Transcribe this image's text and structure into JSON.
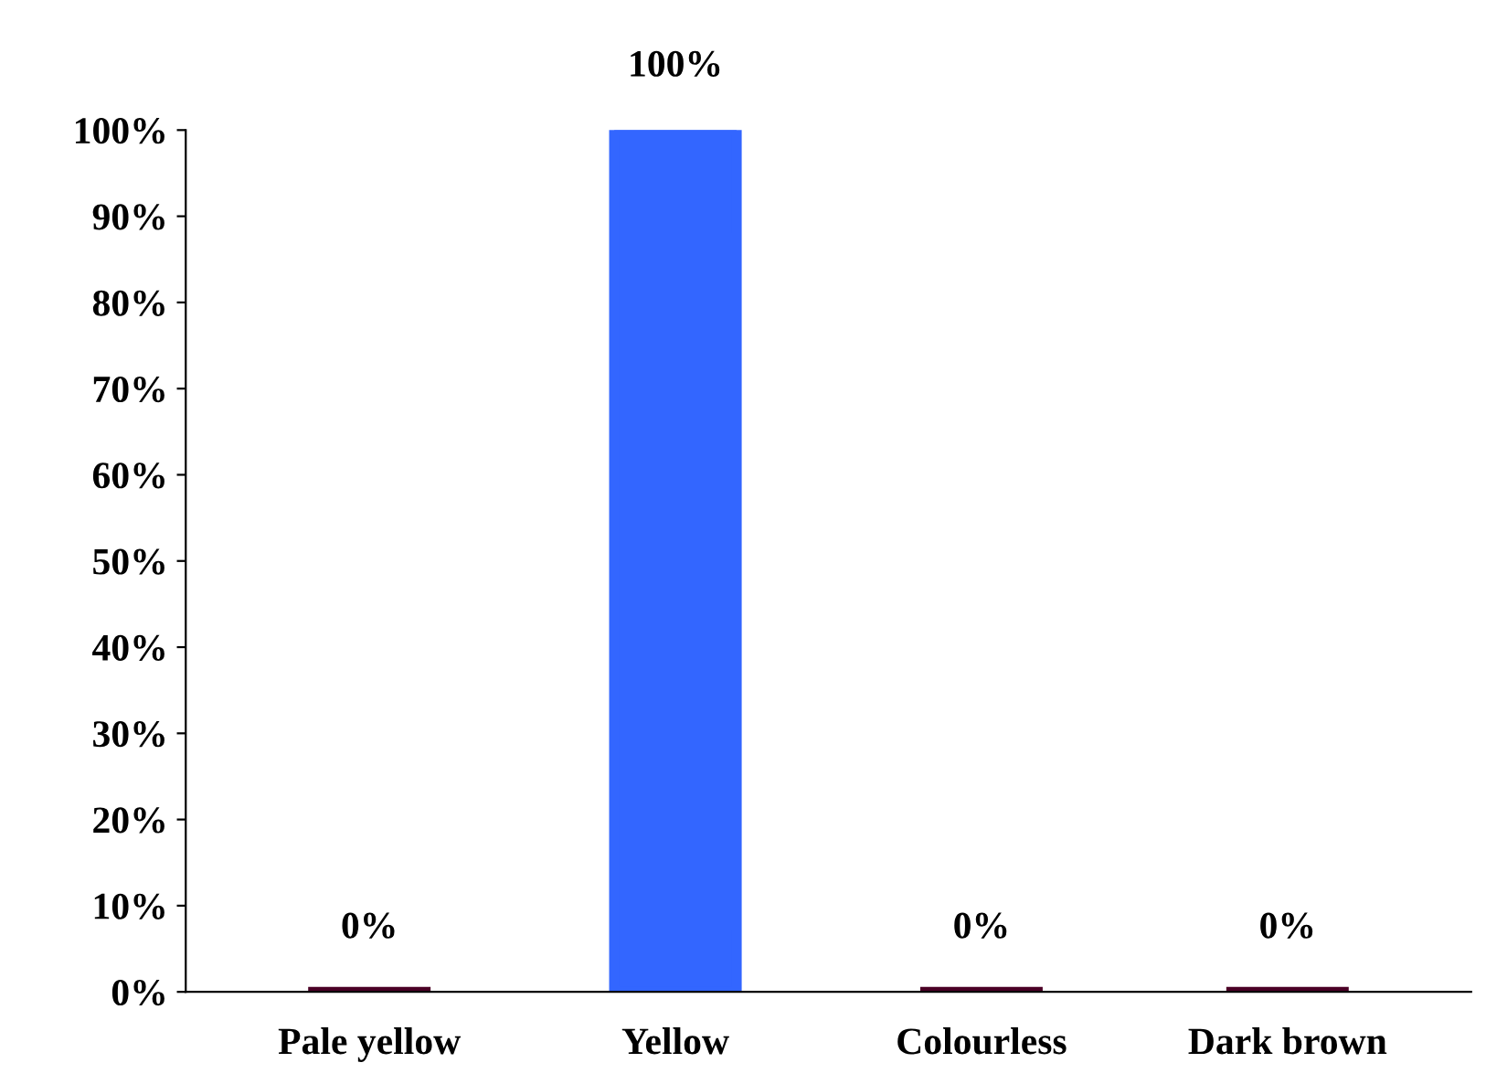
{
  "chart_data": {
    "type": "bar",
    "categories": [
      "Pale yellow",
      "Yellow",
      "Colourless",
      "Dark brown"
    ],
    "values": [
      0,
      100,
      0,
      0
    ],
    "colors": [
      "#4a0025",
      "#3366ff",
      "#4a0025",
      "#4a0025"
    ],
    "value_labels": [
      "0%",
      "100%",
      "0%",
      "0%"
    ],
    "ylim": [
      0,
      100
    ],
    "yticks": [
      {
        "value": 0,
        "label": "0%"
      },
      {
        "value": 10,
        "label": "10%"
      },
      {
        "value": 20,
        "label": "20%"
      },
      {
        "value": 30,
        "label": "30%"
      },
      {
        "value": 40,
        "label": "40%"
      },
      {
        "value": 50,
        "label": "50%"
      },
      {
        "value": 60,
        "label": "60%"
      },
      {
        "value": 70,
        "label": "70%"
      },
      {
        "value": 80,
        "label": "80%"
      },
      {
        "value": 90,
        "label": "90%"
      },
      {
        "value": 100,
        "label": "100%"
      }
    ],
    "grid": false
  }
}
